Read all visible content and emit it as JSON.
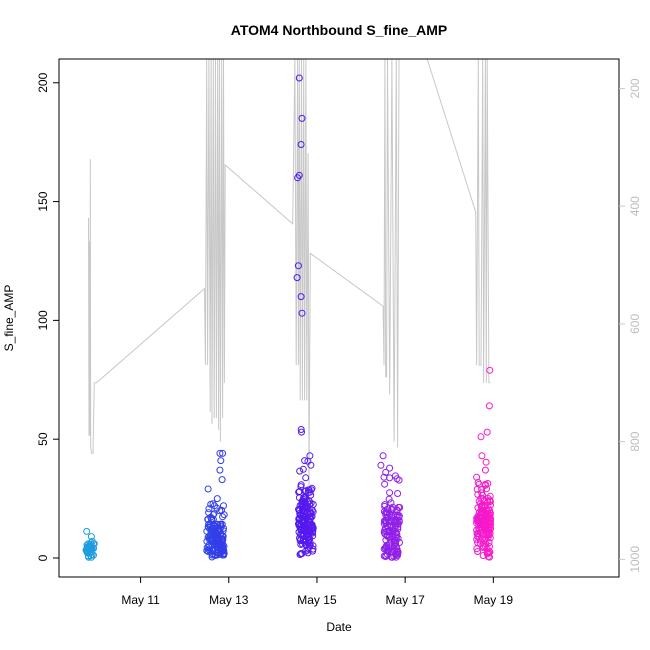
{
  "chart_data": {
    "type": "scatter",
    "title": "ATOM4 Northbound S_fine_AMP",
    "xlabel": "Date",
    "ylabel": "S_fine_AMP",
    "x_unit": "days since May 9 00:00",
    "xlim": [
      0.15,
      12.85
    ],
    "ylim": [
      -8,
      210
    ],
    "x_ticks": [
      {
        "value": 2,
        "label": "May 11"
      },
      {
        "value": 4,
        "label": "May 13"
      },
      {
        "value": 6,
        "label": "May 15"
      },
      {
        "value": 8,
        "label": "May 17"
      },
      {
        "value": 10,
        "label": "May 19"
      }
    ],
    "y_ticks": [
      {
        "value": 0,
        "label": "0"
      },
      {
        "value": 50,
        "label": "50"
      },
      {
        "value": 100,
        "label": "100"
      },
      {
        "value": 150,
        "label": "150"
      },
      {
        "value": 200,
        "label": "200"
      }
    ],
    "secondary_axis": {
      "label": "",
      "range_reversed": [
        1030,
        150
      ],
      "ticks": [
        {
          "value": 200,
          "label": "200"
        },
        {
          "value": 400,
          "label": "400"
        },
        {
          "value": 600,
          "label": "600"
        },
        {
          "value": 800,
          "label": "800"
        },
        {
          "value": 1000,
          "label": "1000"
        }
      ],
      "color": "#c8c8c8"
    },
    "series": [
      {
        "name": "S_fine_AMP",
        "color_ramp": [
          "#1e9fe0",
          "#2a4ee6",
          "#4a18f0",
          "#8f20e8",
          "#ff19c8"
        ],
        "clusters": [
          {
            "x_center": 0.85,
            "x_spread": 0.09,
            "y_mean": 4,
            "y_sd": 1.6,
            "n": 40,
            "extras": [
              [
                0.95,
                6
              ],
              [
                0.9,
                7
              ]
            ]
          },
          {
            "x_center": 3.7,
            "x_spread": 0.2,
            "y_mean": 8,
            "y_sd": 5.5,
            "n": 150,
            "extras": [
              [
                3.8,
                44
              ],
              [
                3.86,
                44
              ],
              [
                3.82,
                41
              ],
              [
                3.8,
                37
              ],
              [
                3.85,
                33
              ],
              [
                3.74,
                25
              ],
              [
                3.88,
                22
              ]
            ]
          },
          {
            "x_center": 5.75,
            "x_spread": 0.17,
            "y_mean": 14,
            "y_sd": 7,
            "n": 170,
            "extras": [
              [
                5.6,
                202
              ],
              [
                5.66,
                185
              ],
              [
                5.64,
                174
              ],
              [
                5.6,
                161
              ],
              [
                5.56,
                160
              ],
              [
                5.58,
                123
              ],
              [
                5.55,
                118
              ],
              [
                5.64,
                110
              ],
              [
                5.66,
                103
              ],
              [
                5.65,
                53
              ],
              [
                5.84,
                43
              ],
              [
                5.72,
                41
              ]
            ]
          },
          {
            "x_center": 7.7,
            "x_spread": 0.18,
            "y_mean": 10,
            "y_sd": 7,
            "n": 130,
            "extras": [
              [
                7.5,
                43
              ],
              [
                7.45,
                39
              ],
              [
                7.56,
                36
              ],
              [
                7.52,
                34
              ]
            ]
          },
          {
            "x_center": 9.78,
            "x_spread": 0.16,
            "y_mean": 14,
            "y_sd": 6.5,
            "n": 160,
            "extras": [
              [
                9.92,
                79
              ],
              [
                9.91,
                64
              ],
              [
                9.86,
                53
              ],
              [
                9.72,
                51
              ],
              [
                9.74,
                43
              ],
              [
                9.82,
                37
              ],
              [
                9.68,
                31
              ],
              [
                9.62,
                34
              ]
            ]
          }
        ]
      },
      {
        "name": "secondary_gray_line",
        "color": "#c8c8c8",
        "axis": "secondary",
        "points": [
          [
            0.82,
            420
          ],
          [
            0.83,
            790
          ],
          [
            0.84,
            460
          ],
          [
            0.85,
            790
          ],
          [
            0.86,
            320
          ],
          [
            0.87,
            810
          ],
          [
            0.89,
            820
          ],
          [
            0.92,
            820
          ],
          [
            0.95,
            700
          ],
          [
            1.0,
            700
          ],
          [
            3.45,
            540
          ],
          [
            3.47,
            670
          ],
          [
            3.5,
            150
          ],
          [
            3.52,
            670
          ],
          [
            3.55,
            150
          ],
          [
            3.58,
            750
          ],
          [
            3.6,
            150
          ],
          [
            3.62,
            770
          ],
          [
            3.65,
            150
          ],
          [
            3.67,
            760
          ],
          [
            3.7,
            150
          ],
          [
            3.72,
            760
          ],
          [
            3.75,
            150
          ],
          [
            3.77,
            780
          ],
          [
            3.79,
            150
          ],
          [
            3.81,
            800
          ],
          [
            3.84,
            150
          ],
          [
            3.86,
            760
          ],
          [
            3.88,
            150
          ],
          [
            3.9,
            700
          ],
          [
            3.92,
            330
          ],
          [
            5.45,
            430
          ],
          [
            5.5,
            150
          ],
          [
            5.53,
            670
          ],
          [
            5.56,
            150
          ],
          [
            5.58,
            670
          ],
          [
            5.6,
            150
          ],
          [
            5.62,
            730
          ],
          [
            5.65,
            150
          ],
          [
            5.67,
            730
          ],
          [
            5.7,
            150
          ],
          [
            5.72,
            730
          ],
          [
            5.75,
            150
          ],
          [
            5.77,
            730
          ],
          [
            5.8,
            310
          ],
          [
            5.82,
            880
          ],
          [
            5.85,
            480
          ],
          [
            7.5,
            570
          ],
          [
            7.52,
            670
          ],
          [
            7.54,
            150
          ],
          [
            7.56,
            690
          ],
          [
            7.58,
            690
          ],
          [
            7.6,
            150
          ],
          [
            7.65,
            720
          ],
          [
            7.7,
            150
          ],
          [
            7.75,
            800
          ],
          [
            7.8,
            150
          ],
          [
            7.83,
            810
          ],
          [
            7.86,
            150
          ],
          [
            8.5,
            150
          ],
          [
            9.6,
            410
          ],
          [
            9.62,
            670
          ],
          [
            9.66,
            150
          ],
          [
            9.68,
            670
          ],
          [
            9.72,
            670
          ],
          [
            9.76,
            150
          ],
          [
            9.78,
            700
          ],
          [
            9.82,
            150
          ],
          [
            9.84,
            700
          ],
          [
            9.86,
            150
          ],
          [
            9.9,
            700
          ],
          [
            9.93,
            700
          ]
        ]
      }
    ]
  }
}
